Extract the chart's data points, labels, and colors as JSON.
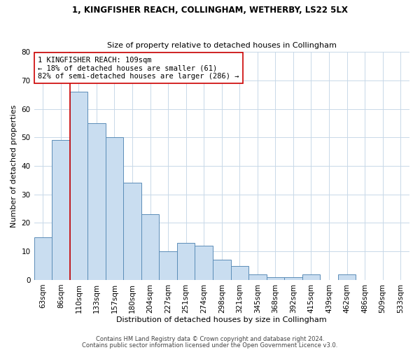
{
  "title1": "1, KINGFISHER REACH, COLLINGHAM, WETHERBY, LS22 5LX",
  "title2": "Size of property relative to detached houses in Collingham",
  "xlabel": "Distribution of detached houses by size in Collingham",
  "ylabel": "Number of detached properties",
  "bar_values": [
    15,
    49,
    66,
    55,
    50,
    34,
    23,
    10,
    13,
    12,
    7,
    5,
    2,
    1,
    1,
    2,
    0,
    2,
    0,
    0,
    0
  ],
  "bin_labels": [
    "63sqm",
    "86sqm",
    "110sqm",
    "133sqm",
    "157sqm",
    "180sqm",
    "204sqm",
    "227sqm",
    "251sqm",
    "274sqm",
    "298sqm",
    "321sqm",
    "345sqm",
    "368sqm",
    "392sqm",
    "415sqm",
    "439sqm",
    "462sqm",
    "486sqm",
    "509sqm",
    "533sqm"
  ],
  "bar_color": "#c9ddf0",
  "bar_edge_color": "#5b8db8",
  "vline_color": "#cc0000",
  "vline_x": 1.5,
  "annotation_text": "1 KINGFISHER REACH: 109sqm\n← 18% of detached houses are smaller (61)\n82% of semi-detached houses are larger (286) →",
  "annotation_box_color": "#ffffff",
  "annotation_box_edge_color": "#cc0000",
  "ylim": [
    0,
    80
  ],
  "yticks": [
    0,
    10,
    20,
    30,
    40,
    50,
    60,
    70,
    80
  ],
  "footer1": "Contains HM Land Registry data © Crown copyright and database right 2024.",
  "footer2": "Contains public sector information licensed under the Open Government Licence v3.0.",
  "background_color": "#ffffff",
  "grid_color": "#c8d8e8",
  "title1_fontsize": 8.5,
  "title2_fontsize": 8.0,
  "ylabel_fontsize": 8.0,
  "xlabel_fontsize": 8.0,
  "tick_fontsize": 7.5,
  "footer_fontsize": 6.0
}
